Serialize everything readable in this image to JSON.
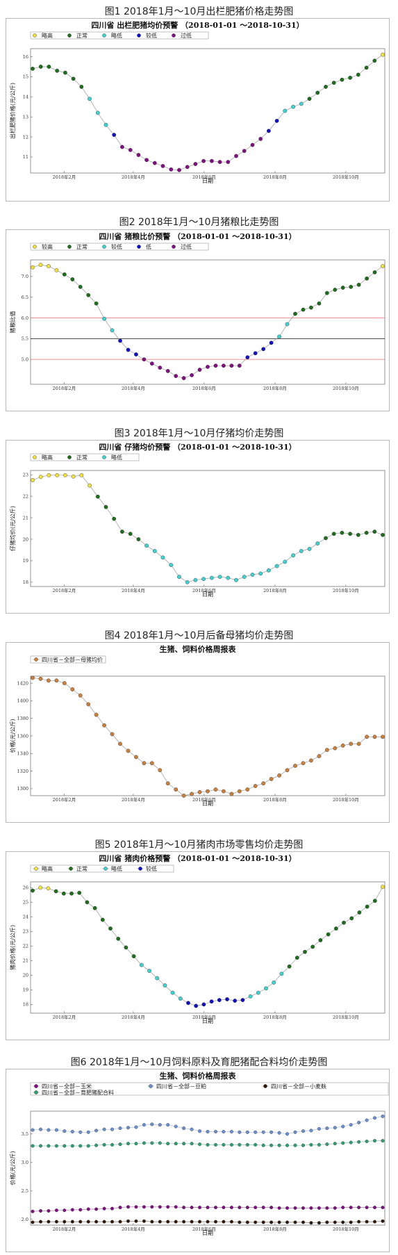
{
  "figures": [
    {
      "caption": "图1  2018年1月～10月出栏肥猪价格走势图",
      "chart_title": "四川省 出栏肥猪均价预警 （2018-01-01 ～2018-10-31）",
      "legend": [
        {
          "name": "略高",
          "color": "#f0e040"
        },
        {
          "name": "正常",
          "color": "#1e6e1e"
        },
        {
          "name": "略低",
          "color": "#40d0d0"
        },
        {
          "name": "较低",
          "color": "#1010c0"
        },
        {
          "name": "过低",
          "color": "#801080"
        }
      ],
      "ylabel": "出栏肥猪价格(元/公斤)",
      "xlabel": "日期",
      "ylim": [
        10.2,
        16.4
      ],
      "yticks": [
        "11",
        "12",
        "13",
        "14",
        "15",
        "16"
      ],
      "xticks": [
        "2018年2月",
        "2018年4月",
        "2018年6月",
        "2018年8月",
        "2018年10月"
      ]
    },
    {
      "caption": "图2  2018年1月～10月猪粮比走势图",
      "chart_title": "四川省 猪粮比价预警 （2018-01-01 ～2018-10-31）",
      "legend": [
        {
          "name": "较高",
          "color": "#f0e040"
        },
        {
          "name": "正常",
          "color": "#1e6e1e"
        },
        {
          "name": "较低",
          "color": "#40d0d0"
        },
        {
          "name": "低",
          "color": "#1010c0"
        },
        {
          "name": "过低",
          "color": "#801080"
        }
      ],
      "ylabel": "猪粮比值",
      "xlabel": "",
      "ylim": [
        4.4,
        7.4
      ],
      "yticks": [
        "5.0",
        "5.5",
        "6.0",
        "6.5",
        "7.0"
      ],
      "xticks": [
        "2018年2月",
        "2018年4月",
        "2018年6月",
        "2018年8月",
        "2018年10月"
      ]
    },
    {
      "caption": "图3  2018年1月～10月仔猪均价走势图",
      "chart_title": "四川省 仔猪均价预警 （2018-01-01 ～2018-10-31）",
      "legend": [
        {
          "name": "略高",
          "color": "#f0e040"
        },
        {
          "name": "正常",
          "color": "#1e6e1e"
        },
        {
          "name": "略低",
          "color": "#40d0d0"
        }
      ],
      "ylabel": "仔猪均价(元/公斤)",
      "xlabel": "日期",
      "ylim": [
        17.8,
        23.2
      ],
      "yticks": [
        "18",
        "19",
        "20",
        "21",
        "22",
        "23"
      ],
      "xticks": [
        "2018年2月",
        "2018年4月",
        "2018年6月",
        "2018年8月",
        "2018年10月"
      ]
    },
    {
      "caption": "图4  2018年1月～10月后备母猪均价走势图",
      "chart_title": "生猪、饲料价格周报表",
      "legend": [
        {
          "name": "四川省－全部－母猪均价",
          "color": "#c8803c"
        }
      ],
      "ylabel": "价格(元/公斤)",
      "xlabel": "日期",
      "ylim": [
        1292,
        1428
      ],
      "yticks": [
        "1300",
        "1320",
        "1340",
        "1360",
        "1380",
        "1400",
        "1420"
      ],
      "xticks": [
        "2018年2月",
        "2018年4月",
        "2018年6月",
        "2018年8月",
        "2018年10月"
      ]
    },
    {
      "caption": "图5  2018年1月～10月猪肉市场零售均价走势图",
      "chart_title": "四川省 猪肉价格预警 （2018-01-01 ～2018-10-31）",
      "legend": [
        {
          "name": "略高",
          "color": "#f0e040"
        },
        {
          "name": "正常",
          "color": "#1e6e1e"
        },
        {
          "name": "略低",
          "color": "#40d0d0"
        },
        {
          "name": "较低",
          "color": "#1010c0"
        }
      ],
      "ylabel": "猪肉价格(元/公斤)",
      "xlabel": "日期",
      "ylim": [
        17.4,
        26.4
      ],
      "yticks": [
        "18",
        "19",
        "20",
        "21",
        "22",
        "23",
        "24",
        "25",
        "26"
      ],
      "xticks": [
        "2018年2月",
        "2018年4月",
        "2018年6月",
        "2018年8月",
        "2018年10月"
      ]
    },
    {
      "caption": "图6  2018年1月～10月饲料原料及育肥猪配合料均价走势图",
      "chart_title": "生猪、饲料价格周报表",
      "legend": [
        {
          "name": "四川省－全部－玉米",
          "color": "#801080"
        },
        {
          "name": "四川省－全部－豆粕",
          "color": "#6a90d0"
        },
        {
          "name": "四川省－全部－小麦麸",
          "color": "#301808"
        },
        {
          "name": "四川省－全部－育肥猪配合料",
          "color": "#30a070"
        }
      ],
      "ylabel": "价格(元/公斤)",
      "xlabel": "日期",
      "ylim": [
        1.9,
        3.9
      ],
      "yticks": [
        "2.0",
        "2.5",
        "3.0",
        "3.5"
      ],
      "xticks": [
        "2018年2月",
        "2018年4月",
        "2018年6月",
        "2018年8月",
        "2018年10月"
      ]
    }
  ],
  "chart_data": [
    {
      "type": "line",
      "series": [
        {
          "values": [
            15.4,
            15.5,
            15.5,
            15.3,
            15.2,
            14.9,
            14.5,
            13.9,
            13.2,
            12.6,
            12.1,
            11.5,
            11.35,
            11.1,
            10.85,
            10.7,
            10.55,
            10.38,
            10.35,
            10.5,
            10.65,
            10.8,
            10.8,
            10.75,
            10.75,
            11.05,
            11.3,
            11.6,
            11.9,
            12.3,
            12.8,
            13.3,
            13.5,
            13.65,
            13.9,
            14.2,
            14.5,
            14.7,
            14.85,
            14.95,
            15.1,
            15.45,
            15.8,
            16.1
          ],
          "colors": [
            "g",
            "g",
            "g",
            "g",
            "g",
            "g",
            "g",
            "c",
            "c",
            "c",
            "b",
            "p",
            "p",
            "p",
            "p",
            "p",
            "p",
            "p",
            "p",
            "p",
            "p",
            "p",
            "p",
            "p",
            "p",
            "p",
            "p",
            "p",
            "p",
            "b",
            "b",
            "c",
            "c",
            "c",
            "g",
            "g",
            "g",
            "g",
            "g",
            "g",
            "g",
            "g",
            "g",
            "y"
          ]
        }
      ]
    },
    {
      "type": "line",
      "series": [
        {
          "values": [
            7.22,
            7.28,
            7.25,
            7.15,
            7.05,
            6.93,
            6.75,
            6.55,
            6.35,
            5.98,
            5.7,
            5.45,
            5.23,
            5.12,
            5.0,
            4.9,
            4.8,
            4.72,
            4.6,
            4.55,
            4.62,
            4.75,
            4.82,
            4.85,
            4.85,
            4.85,
            4.85,
            5.05,
            5.15,
            5.25,
            5.4,
            5.55,
            5.85,
            6.1,
            6.2,
            6.25,
            6.35,
            6.6,
            6.68,
            6.73,
            6.75,
            6.8,
            6.95,
            7.1,
            7.25
          ],
          "colors": [
            "y",
            "y",
            "y",
            "y",
            "g",
            "g",
            "g",
            "g",
            "g",
            "c",
            "c",
            "b",
            "b",
            "b",
            "p",
            "p",
            "p",
            "p",
            "p",
            "p",
            "p",
            "p",
            "p",
            "p",
            "p",
            "p",
            "p",
            "b",
            "b",
            "b",
            "b",
            "c",
            "c",
            "g",
            "g",
            "g",
            "g",
            "g",
            "g",
            "g",
            "g",
            "g",
            "g",
            "g",
            "y"
          ]
        }
      ],
      "hlines": [
        {
          "y": 6.0,
          "color": "#f08080"
        },
        {
          "y": 5.5,
          "color": "#404040"
        },
        {
          "y": 5.0,
          "color": "#f08080"
        }
      ]
    },
    {
      "type": "line",
      "series": [
        {
          "values": [
            22.75,
            22.9,
            22.98,
            22.98,
            22.98,
            22.92,
            22.98,
            22.5,
            21.98,
            21.5,
            20.95,
            20.35,
            20.25,
            20.0,
            19.7,
            19.45,
            19.15,
            18.8,
            18.25,
            18.0,
            18.1,
            18.15,
            18.2,
            18.25,
            18.2,
            18.1,
            18.25,
            18.35,
            18.4,
            18.55,
            18.75,
            18.95,
            19.25,
            19.45,
            19.55,
            19.8,
            20.05,
            20.25,
            20.3,
            20.25,
            20.2,
            20.3,
            20.35,
            20.2
          ],
          "colors": [
            "y",
            "y",
            "y",
            "y",
            "y",
            "y",
            "y",
            "y",
            "g",
            "g",
            "g",
            "g",
            "g",
            "g",
            "c",
            "c",
            "c",
            "c",
            "c",
            "c",
            "c",
            "c",
            "c",
            "c",
            "c",
            "c",
            "c",
            "c",
            "c",
            "c",
            "c",
            "c",
            "c",
            "c",
            "c",
            "c",
            "g",
            "g",
            "g",
            "g",
            "g",
            "g",
            "g",
            "g"
          ]
        }
      ]
    },
    {
      "type": "line",
      "series": [
        {
          "name": "四川省－全部－母猪均价",
          "values": [
            1426,
            1425,
            1423,
            1423,
            1420,
            1413,
            1406,
            1396,
            1384,
            1372,
            1362,
            1351,
            1343,
            1336,
            1329,
            1329,
            1321,
            1306,
            1299,
            1292,
            1294,
            1296,
            1297,
            1299,
            1297,
            1294,
            1297,
            1299,
            1303,
            1306,
            1311,
            1315,
            1321,
            1326,
            1329,
            1332,
            1337,
            1344,
            1346,
            1349,
            1351,
            1351,
            1359,
            1359,
            1359
          ]
        }
      ]
    },
    {
      "type": "line",
      "series": [
        {
          "values": [
            25.8,
            26.0,
            25.95,
            25.75,
            25.6,
            25.6,
            25.65,
            25.0,
            24.6,
            23.8,
            23.2,
            22.5,
            21.9,
            21.3,
            20.7,
            20.3,
            19.8,
            19.3,
            18.8,
            18.4,
            18.1,
            17.9,
            18.0,
            18.2,
            18.3,
            18.35,
            18.25,
            18.3,
            18.55,
            18.8,
            19.1,
            19.5,
            20.1,
            20.6,
            21.2,
            21.6,
            21.95,
            22.4,
            22.8,
            23.2,
            23.6,
            23.9,
            24.3,
            24.7,
            25.1,
            26.05
          ],
          "colors": [
            "g",
            "y",
            "y",
            "g",
            "g",
            "g",
            "g",
            "g",
            "g",
            "g",
            "g",
            "g",
            "g",
            "g",
            "c",
            "c",
            "c",
            "c",
            "c",
            "c",
            "b",
            "b",
            "b",
            "b",
            "b",
            "b",
            "b",
            "b",
            "c",
            "c",
            "c",
            "c",
            "c",
            "g",
            "g",
            "g",
            "g",
            "g",
            "g",
            "g",
            "g",
            "g",
            "g",
            "g",
            "g",
            "y"
          ]
        }
      ]
    },
    {
      "type": "line",
      "series": [
        {
          "name": "四川省－全部－玉米",
          "values": [
            2.14,
            2.15,
            2.15,
            2.16,
            2.16,
            2.17,
            2.17,
            2.18,
            2.18,
            2.19,
            2.19,
            2.21,
            2.22,
            2.22,
            2.22,
            2.22,
            2.22,
            2.22,
            2.22,
            2.21,
            2.21,
            2.21,
            2.21,
            2.21,
            2.21,
            2.21,
            2.21,
            2.21,
            2.21,
            2.21,
            2.21,
            2.2,
            2.2,
            2.2,
            2.2,
            2.2,
            2.2,
            2.2,
            2.2,
            2.21,
            2.21,
            2.21,
            2.21,
            2.21,
            2.21
          ]
        },
        {
          "name": "四川省－全部－豆粕",
          "values": [
            3.57,
            3.58,
            3.57,
            3.57,
            3.55,
            3.54,
            3.53,
            3.53,
            3.56,
            3.58,
            3.58,
            3.6,
            3.61,
            3.62,
            3.66,
            3.67,
            3.66,
            3.66,
            3.63,
            3.6,
            3.58,
            3.55,
            3.54,
            3.54,
            3.54,
            3.54,
            3.53,
            3.53,
            3.53,
            3.53,
            3.53,
            3.52,
            3.5,
            3.53,
            3.55,
            3.56,
            3.59,
            3.6,
            3.61,
            3.63,
            3.66,
            3.7,
            3.74,
            3.78,
            3.81
          ]
        },
        {
          "name": "四川省－全部－小麦麸",
          "values": [
            1.95,
            1.96,
            1.96,
            1.96,
            1.96,
            1.96,
            1.96,
            1.96,
            1.96,
            1.96,
            1.96,
            1.96,
            1.97,
            1.97,
            1.97,
            1.96,
            1.96,
            1.96,
            1.96,
            1.96,
            1.96,
            1.96,
            1.96,
            1.96,
            1.96,
            1.96,
            1.95,
            1.95,
            1.95,
            1.95,
            1.95,
            1.95,
            1.95,
            1.95,
            1.95,
            1.94,
            1.94,
            1.95,
            1.95,
            1.95,
            1.95,
            1.96,
            1.96,
            1.96,
            1.97
          ]
        },
        {
          "name": "四川省－全部－育肥猪配合料",
          "values": [
            3.29,
            3.29,
            3.29,
            3.29,
            3.29,
            3.29,
            3.29,
            3.29,
            3.3,
            3.31,
            3.31,
            3.32,
            3.33,
            3.33,
            3.34,
            3.34,
            3.34,
            3.33,
            3.33,
            3.33,
            3.33,
            3.32,
            3.31,
            3.31,
            3.31,
            3.31,
            3.31,
            3.31,
            3.31,
            3.3,
            3.3,
            3.3,
            3.3,
            3.3,
            3.3,
            3.31,
            3.31,
            3.32,
            3.33,
            3.34,
            3.35,
            3.36,
            3.37,
            3.38,
            3.38
          ]
        }
      ]
    }
  ],
  "palette": {
    "y": "#f0e040",
    "g": "#1e6e1e",
    "c": "#40d0d0",
    "b": "#1010c0",
    "p": "#801080"
  }
}
